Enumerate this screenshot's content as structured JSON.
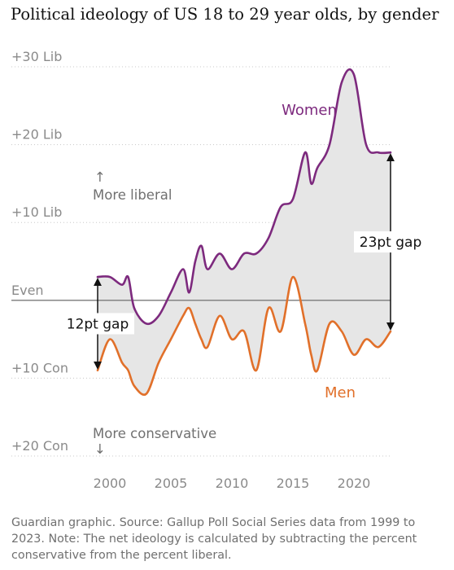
{
  "title": "Political ideology of US 18 to 29 year olds, by gender",
  "footer": "Guardian graphic. Source: Gallup Poll Social Series data from 1999 to 2023. Note: The net ideology is calculated by subtracting the percent conservative from the percent liberal.",
  "chart_data": {
    "type": "line",
    "title": "Political ideology of US 18 to 29 year olds, by gender",
    "xlabel": "",
    "ylabel": "",
    "xlim": [
      1999,
      2023
    ],
    "ylim": [
      -20,
      30
    ],
    "x_ticks": [
      2000,
      2005,
      2010,
      2015,
      2020
    ],
    "y_ticks": [
      {
        "value": 30,
        "label": "+30 Lib"
      },
      {
        "value": 20,
        "label": "+20 Lib"
      },
      {
        "value": 10,
        "label": "+10 Lib"
      },
      {
        "value": 0,
        "label": "Even"
      },
      {
        "value": -10,
        "label": "+10 Con"
      },
      {
        "value": -20,
        "label": "+20 Con"
      }
    ],
    "grid": true,
    "series": [
      {
        "name": "Women",
        "color": "#7d2a7e",
        "points": [
          [
            1999,
            3
          ],
          [
            2000,
            3
          ],
          [
            2001,
            2
          ],
          [
            2001.5,
            3
          ],
          [
            2002,
            -1
          ],
          [
            2003,
            -3
          ],
          [
            2004,
            -2
          ],
          [
            2005,
            1
          ],
          [
            2006,
            4
          ],
          [
            2006.5,
            1
          ],
          [
            2007,
            5
          ],
          [
            2007.5,
            7
          ],
          [
            2008,
            4
          ],
          [
            2009,
            6
          ],
          [
            2010,
            4
          ],
          [
            2011,
            6
          ],
          [
            2012,
            6
          ],
          [
            2013,
            8
          ],
          [
            2014,
            12
          ],
          [
            2015,
            13
          ],
          [
            2016,
            19
          ],
          [
            2016.5,
            15
          ],
          [
            2017,
            17
          ],
          [
            2018,
            20
          ],
          [
            2019,
            28
          ],
          [
            2020,
            29
          ],
          [
            2021,
            20
          ],
          [
            2022,
            19
          ],
          [
            2023,
            19
          ]
        ]
      },
      {
        "name": "Men",
        "color": "#e1702a",
        "points": [
          [
            1999,
            -9
          ],
          [
            2000,
            -5
          ],
          [
            2001,
            -8
          ],
          [
            2001.5,
            -9
          ],
          [
            2002,
            -11
          ],
          [
            2003,
            -12
          ],
          [
            2004,
            -8
          ],
          [
            2005,
            -5
          ],
          [
            2006,
            -2
          ],
          [
            2006.5,
            -1
          ],
          [
            2007,
            -3
          ],
          [
            2007.5,
            -5
          ],
          [
            2008,
            -6
          ],
          [
            2009,
            -2
          ],
          [
            2010,
            -5
          ],
          [
            2011,
            -4
          ],
          [
            2012,
            -9
          ],
          [
            2013,
            -1
          ],
          [
            2014,
            -4
          ],
          [
            2015,
            3
          ],
          [
            2016,
            -3
          ],
          [
            2016.5,
            -7
          ],
          [
            2017,
            -9
          ],
          [
            2018,
            -3
          ],
          [
            2019,
            -4
          ],
          [
            2020,
            -7
          ],
          [
            2021,
            -5
          ],
          [
            2022,
            -6
          ],
          [
            2023,
            -4
          ]
        ]
      }
    ],
    "annotations": [
      {
        "text": "↑",
        "note": "arrow above liberal label"
      },
      {
        "text": "More liberal"
      },
      {
        "text": "More conservative"
      },
      {
        "text": "↓",
        "note": "arrow below conservative label"
      },
      {
        "text": "12pt gap",
        "year": 1999
      },
      {
        "text": "23pt gap",
        "year": 2023
      }
    ]
  }
}
